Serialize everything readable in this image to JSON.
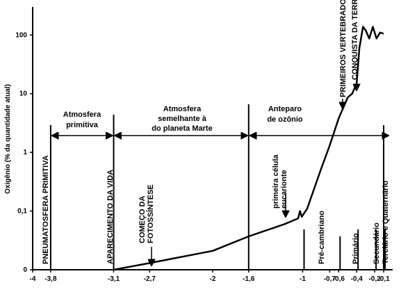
{
  "chart_data": {
    "type": "line",
    "y_label": "Oxigênio (% da quantidade atual)",
    "log_y": true,
    "color": "#000000",
    "xlim": [
      -4,
      0
    ],
    "xticks": [
      -4,
      {
        "value": -3.8,
        "label": "-3,8"
      },
      {
        "value": -3.1,
        "label": "-3,1"
      },
      {
        "value": -2.7,
        "label": "-2,7"
      },
      -2,
      {
        "value": -1.6,
        "label": "-1,6"
      },
      -1,
      {
        "value": -0.7,
        "label": "-0,7"
      },
      {
        "value": -0.6,
        "label": "-0,6"
      },
      {
        "value": -0.4,
        "label": "-0,4"
      },
      {
        "value": -0.2,
        "label": "-0,2"
      },
      {
        "value": -0.1,
        "label": "-0,1"
      }
    ],
    "ylim": [
      0.01,
      300
    ],
    "yticks": [
      {
        "value": 0.01,
        "label": "0"
      },
      {
        "value": 0.1,
        "label": "0,1"
      },
      1,
      10,
      100
    ],
    "x": [
      -3.1,
      -2.7,
      -2,
      -1.6,
      -1.2,
      -1.05,
      -1.03,
      -1.01,
      -0.95,
      -0.8,
      -0.7,
      -0.6,
      -0.5,
      -0.45,
      -0.4,
      -0.37,
      -0.33,
      -0.3,
      -0.26,
      -0.22,
      -0.18,
      -0.14,
      -0.1
    ],
    "values": [
      0.01,
      0.013,
      0.021,
      0.037,
      0.06,
      0.075,
      0.1,
      0.08,
      0.11,
      0.5,
      1.3,
      3.8,
      8.6,
      10,
      15,
      60,
      138,
      120,
      87,
      138,
      87,
      110,
      105
    ],
    "annotations": [
      {
        "text": [
          "Atmosfera",
          "primitiva"
        ]
      },
      {
        "text": [
          "Atmosfera",
          "semelhante à",
          "do planeta Marte"
        ]
      },
      {
        "text": [
          "Anteparo",
          "de ozônio"
        ]
      },
      {
        "text": [
          "PNEUMATOSFERA PRIMITIVA"
        ]
      },
      {
        "text": [
          "APARECIMENTO DA VIDA"
        ]
      },
      {
        "text": [
          "COMEÇO DA",
          "FOTOSSÍNTESE"
        ]
      },
      {
        "text": [
          "primeira célula",
          "eucarionte"
        ]
      },
      {
        "text": [
          "PRIMEIROS VERTEBRADOS"
        ]
      },
      {
        "text": [
          "CONQUISTA DA TERRA"
        ]
      },
      {
        "text": [
          "Pré-cambriano"
        ]
      },
      {
        "text": [
          "Primário"
        ]
      },
      {
        "text": [
          "Secundário"
        ]
      },
      {
        "text": [
          "Terciário e Quaternário"
        ]
      }
    ]
  }
}
